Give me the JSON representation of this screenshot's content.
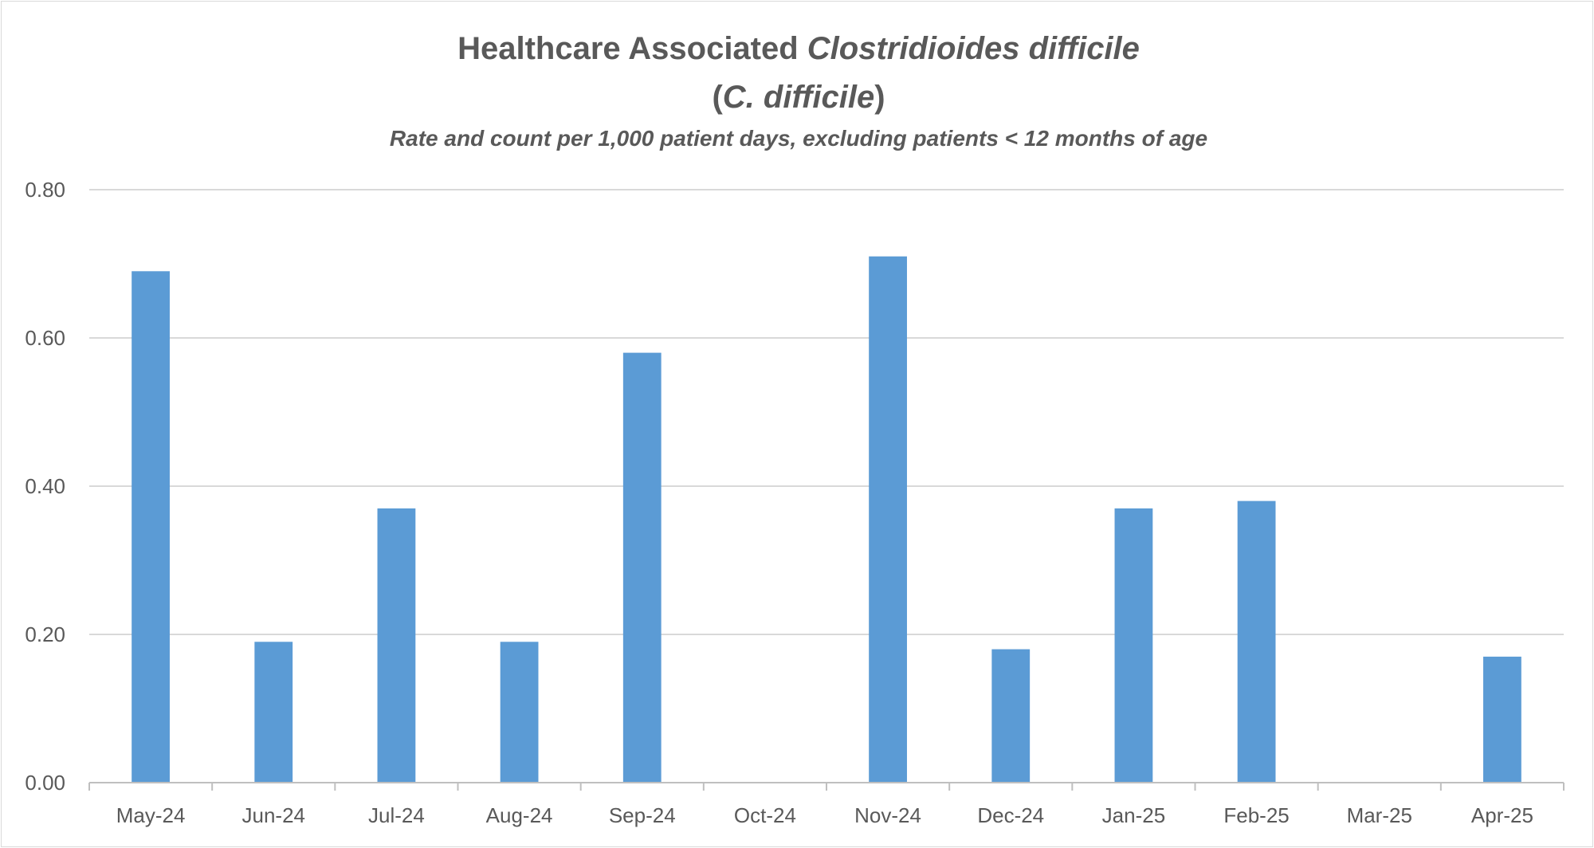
{
  "chart_data": {
    "type": "bar",
    "title": {
      "part1": "Healthcare Associated ",
      "part1_italic": "Clostridioides difficile",
      "part2_open": "(",
      "part2_italic": "C. difficile",
      "part2_close": ")"
    },
    "subtitle": "Rate and count per 1,000 patient days, excluding patients < 12 months of age",
    "categories": [
      "May-24",
      "Jun-24",
      "Jul-24",
      "Aug-24",
      "Sep-24",
      "Oct-24",
      "Nov-24",
      "Dec-24",
      "Jan-25",
      "Feb-25",
      "Mar-25",
      "Apr-25"
    ],
    "values": [
      0.69,
      0.19,
      0.37,
      0.19,
      0.58,
      0.0,
      0.71,
      0.18,
      0.37,
      0.38,
      0.0,
      0.17
    ],
    "ylim": [
      0,
      0.8
    ],
    "yticks": [
      "0.00",
      "0.20",
      "0.40",
      "0.60",
      "0.80"
    ],
    "grid": true,
    "bar_color": "#5b9bd5"
  }
}
